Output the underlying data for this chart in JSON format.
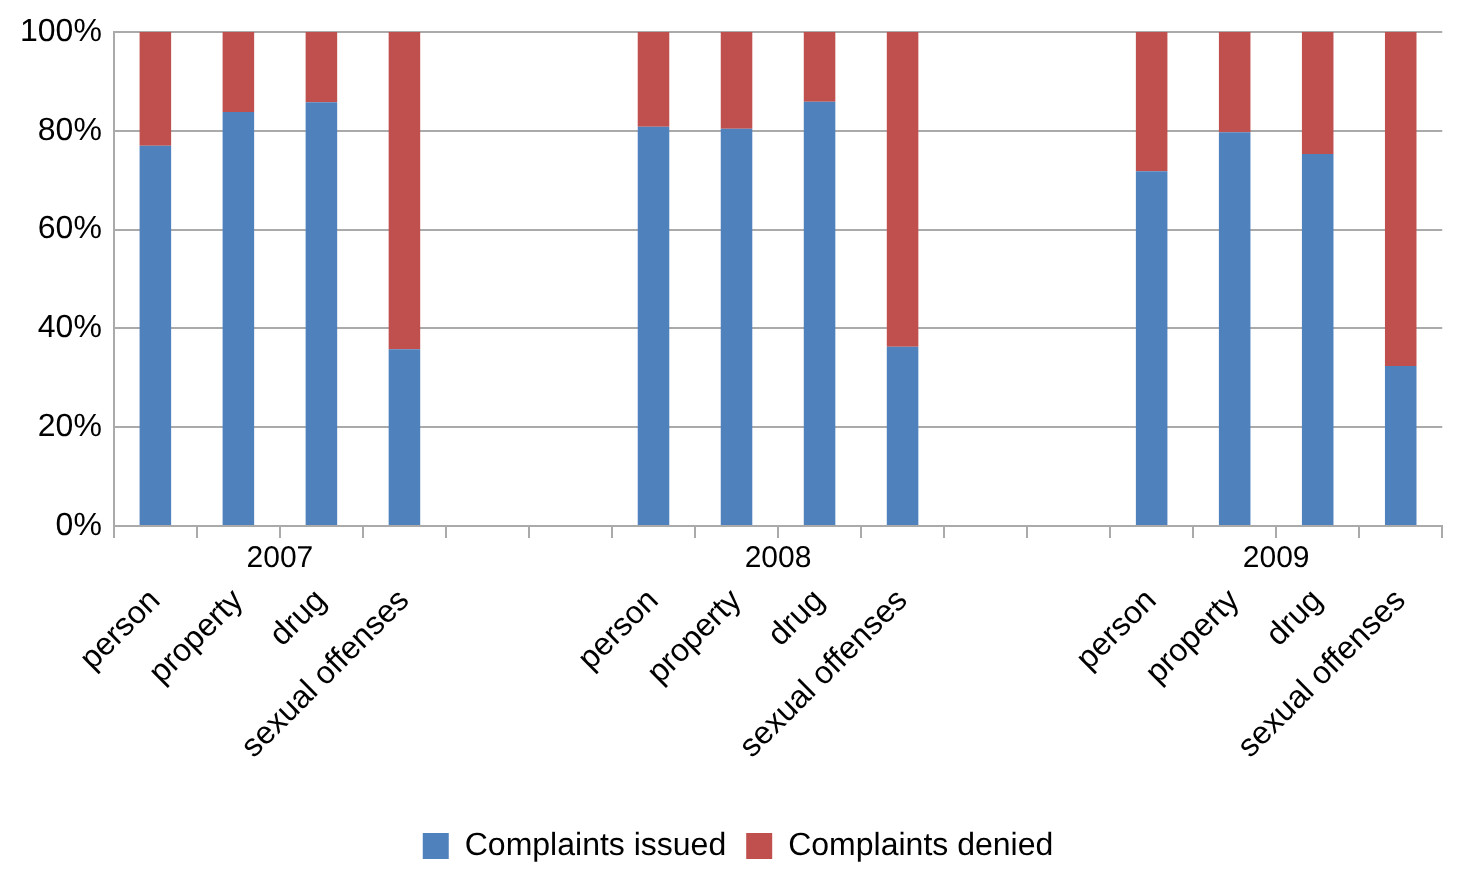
{
  "chart_data": {
    "type": "bar",
    "stacked": true,
    "categories": [
      "person",
      "property",
      "drug",
      "sexual offenses",
      null,
      null,
      "person",
      "property",
      "drug",
      "sexual offenses",
      null,
      null,
      "person",
      "property",
      "drug",
      "sexual offenses"
    ],
    "series": [
      {
        "name": "Complaints issued",
        "color": "#4f81bd",
        "values": [
          77,
          83.8,
          85.8,
          35.8,
          null,
          null,
          80.8,
          80.4,
          85.9,
          36.3,
          null,
          null,
          71.8,
          79.7,
          75.3,
          32.4
        ]
      },
      {
        "name": "Complaints denied",
        "color": "#c0504d",
        "values": [
          23,
          16.2,
          14.2,
          64.2,
          null,
          null,
          19.2,
          19.6,
          14.1,
          63.7,
          null,
          null,
          28.2,
          20.3,
          24.7,
          67.6
        ]
      }
    ],
    "annotations": [
      "2007",
      "2008",
      "2009"
    ],
    "ylim": [
      0,
      100
    ],
    "yticks": [
      {
        "value": 0,
        "label": "0%"
      },
      {
        "value": 20,
        "label": "20%"
      },
      {
        "value": 40,
        "label": "40%"
      },
      {
        "value": 60,
        "label": "60%"
      },
      {
        "value": 80,
        "label": "80%"
      },
      {
        "value": 100,
        "label": "100%"
      }
    ],
    "grid": "y",
    "legend": "bottom"
  }
}
